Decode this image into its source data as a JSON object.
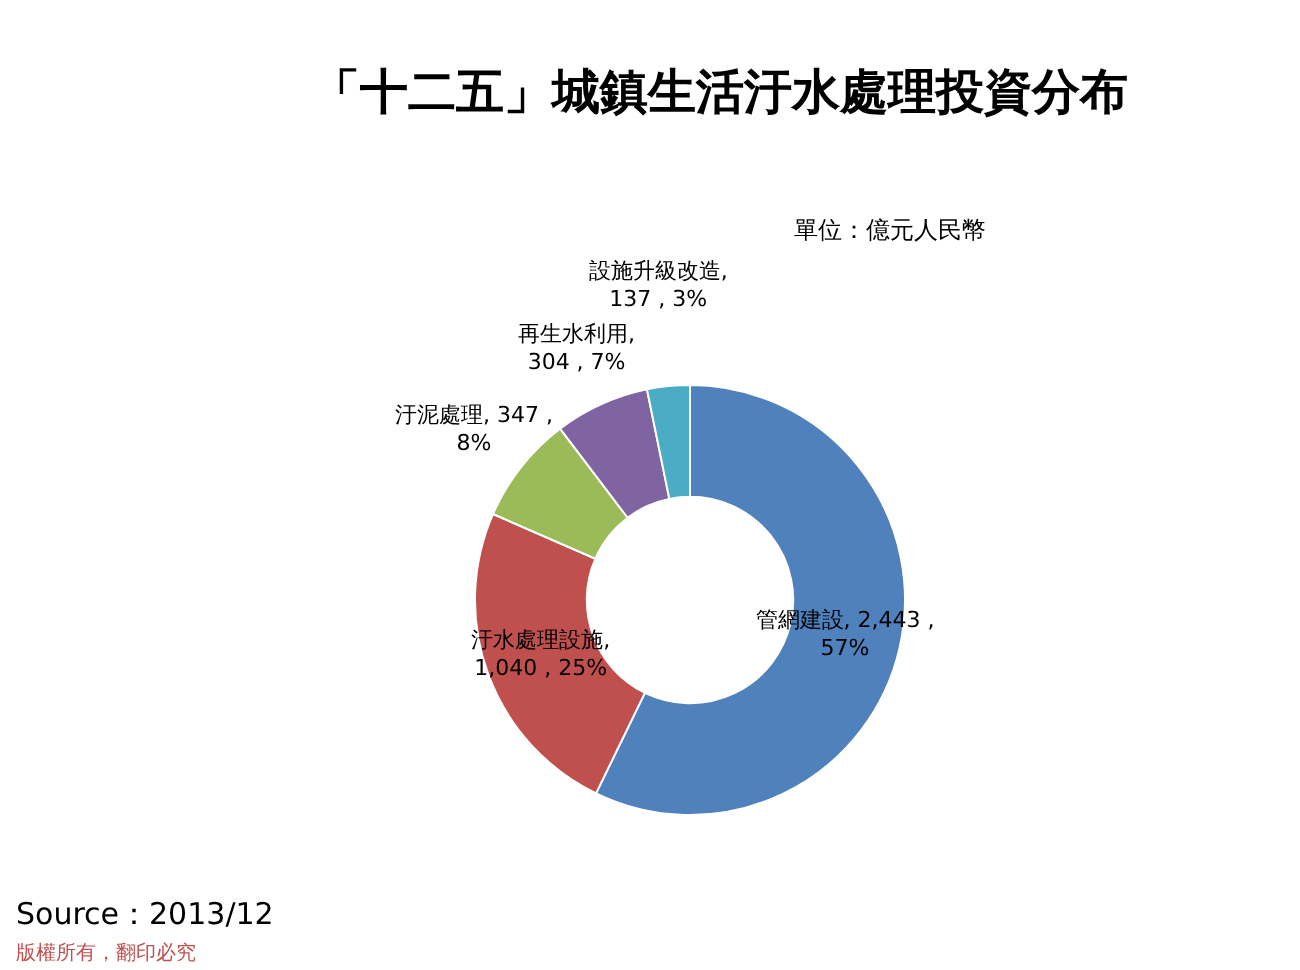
{
  "chart_data": {
    "type": "donut",
    "title": "「十二五」城鎮生活汙水處理投資分布",
    "subtitle": "單位：億元人民幣",
    "categories": [
      "管網建設",
      "汙水處理設施",
      "汙泥處理",
      "再生水利用",
      "設施升級改造"
    ],
    "values": [
      2443,
      1040,
      347,
      304,
      137
    ],
    "colors": [
      "#4f81bd",
      "#c0504d",
      "#9bbb59",
      "#8064a2",
      "#4bacc6"
    ],
    "value_labels": [
      ", 2,443 ,\n57%",
      ",\n1,040 , 25%",
      ", 347 ,\n8%",
      ",\n304 , 7%",
      ",\n137 , 3%"
    ],
    "annotations": [
      "Source：2013/12",
      "版權所有，翻印必究"
    ],
    "legend": false
  }
}
